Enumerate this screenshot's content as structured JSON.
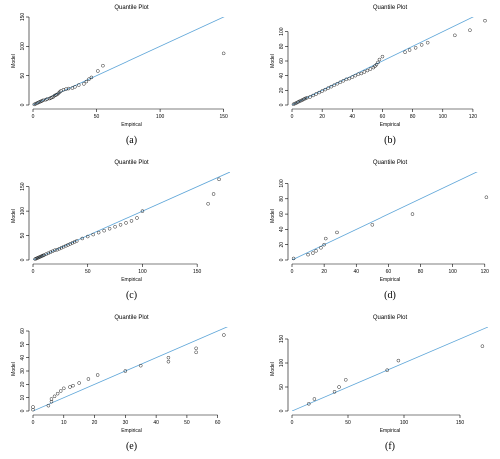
{
  "colors": {
    "reference_line": "#5da5d8",
    "points": "#222222",
    "axes": "#000000"
  },
  "chart_data": [
    {
      "type": "scatter",
      "caption": "(a)",
      "title": "Quantile Plot",
      "xlabel": "Empirical",
      "ylabel": "Model",
      "xlim": [
        0,
        155
      ],
      "ylim": [
        0,
        150
      ],
      "xticks": [
        0,
        50,
        100,
        150
      ],
      "yticks": [
        0,
        50,
        100,
        150
      ],
      "reference_line": {
        "x": [
          0,
          155
        ],
        "y": [
          0,
          155
        ]
      },
      "series": [
        {
          "x": [
            1,
            2,
            3,
            4,
            5,
            6,
            7,
            8,
            10,
            11,
            13,
            14,
            15,
            16,
            17,
            18,
            19,
            20,
            21,
            22,
            24,
            26,
            28,
            31,
            33,
            36,
            40,
            42,
            44,
            46,
            51,
            55,
            150
          ],
          "y": [
            1,
            2,
            3,
            4,
            5,
            6,
            7,
            8,
            9,
            10,
            11,
            12,
            13,
            14,
            16,
            17,
            18,
            20,
            22,
            24,
            26,
            27,
            28,
            29,
            31,
            34,
            36,
            40,
            44,
            47,
            58,
            67,
            88
          ]
        }
      ]
    },
    {
      "type": "scatter",
      "caption": "(b)",
      "title": "Quantile Plot",
      "xlabel": "Empirical",
      "ylabel": "Model",
      "xlim": [
        0,
        130
      ],
      "ylim": [
        0,
        120
      ],
      "xticks": [
        0,
        20,
        40,
        60,
        80,
        100,
        120
      ],
      "yticks": [
        0,
        20,
        40,
        60,
        80,
        100
      ],
      "reference_line": {
        "x": [
          0,
          130
        ],
        "y": [
          0,
          130
        ]
      },
      "series": [
        {
          "x": [
            1,
            2,
            3,
            4,
            5,
            6,
            7,
            8,
            9,
            10,
            12,
            14,
            16,
            18,
            20,
            22,
            24,
            26,
            28,
            30,
            32,
            34,
            36,
            38,
            40,
            42,
            44,
            46,
            48,
            50,
            52,
            54,
            55,
            56,
            57,
            58,
            60,
            75,
            78,
            82,
            86,
            90,
            108,
            118,
            128
          ],
          "y": [
            1,
            2,
            3,
            4,
            5,
            6,
            7,
            8,
            9,
            10,
            11,
            13,
            15,
            17,
            19,
            21,
            23,
            25,
            27,
            29,
            31,
            33,
            35,
            36,
            38,
            40,
            42,
            43,
            45,
            47,
            49,
            51,
            53,
            55,
            58,
            62,
            66,
            72,
            75,
            78,
            82,
            85,
            95,
            102,
            115
          ]
        }
      ]
    },
    {
      "type": "scatter",
      "caption": "(c)",
      "title": "Quantile Plot",
      "xlabel": "Empirical",
      "ylabel": "Model",
      "xlim": [
        0,
        180
      ],
      "ylim": [
        0,
        180
      ],
      "xticks": [
        0,
        50,
        100,
        150
      ],
      "yticks": [
        0,
        50,
        100,
        150
      ],
      "reference_line": {
        "x": [
          0,
          180
        ],
        "y": [
          0,
          180
        ]
      },
      "series": [
        {
          "x": [
            2,
            3,
            4,
            5,
            6,
            7,
            8,
            9,
            10,
            12,
            14,
            16,
            18,
            20,
            22,
            24,
            26,
            28,
            30,
            32,
            34,
            36,
            38,
            40,
            45,
            50,
            55,
            60,
            65,
            70,
            75,
            80,
            85,
            90,
            95,
            100,
            160,
            165,
            170
          ],
          "y": [
            2,
            3,
            4,
            5,
            6,
            7,
            8,
            9,
            10,
            12,
            14,
            16,
            18,
            20,
            21,
            23,
            25,
            27,
            29,
            31,
            33,
            35,
            37,
            39,
            44,
            48,
            52,
            56,
            60,
            64,
            68,
            72,
            76,
            80,
            86,
            100,
            115,
            135,
            165
          ]
        }
      ]
    },
    {
      "type": "scatter",
      "caption": "(d)",
      "title": "Quantile Plot",
      "xlabel": "Empirical",
      "ylabel": "Model",
      "xlim": [
        0,
        122
      ],
      "ylim": [
        0,
        115
      ],
      "xticks": [
        0,
        20,
        40,
        60,
        80,
        100,
        120
      ],
      "yticks": [
        0,
        20,
        40,
        60,
        80,
        100
      ],
      "reference_line": {
        "x": [
          0,
          122
        ],
        "y": [
          0,
          122
        ]
      },
      "series": [
        {
          "x": [
            1,
            10,
            13,
            15,
            18,
            20,
            21,
            28,
            50,
            75,
            121
          ],
          "y": [
            2,
            7,
            9,
            12,
            16,
            20,
            28,
            36,
            46,
            60,
            82
          ]
        }
      ]
    },
    {
      "type": "scatter",
      "caption": "(e)",
      "title": "Quantile Plot",
      "xlabel": "Empirical",
      "ylabel": "Model",
      "xlim": [
        0,
        64
      ],
      "ylim": [
        0,
        63
      ],
      "xticks": [
        0,
        10,
        20,
        30,
        40,
        50,
        60
      ],
      "yticks": [
        0,
        10,
        20,
        30,
        40,
        50,
        60
      ],
      "reference_line": {
        "x": [
          0,
          64
        ],
        "y": [
          0,
          64
        ]
      },
      "series": [
        {
          "x": [
            0,
            0,
            5,
            6,
            6,
            7,
            8,
            9,
            10,
            12,
            13,
            15,
            18,
            21,
            30,
            35,
            44,
            44,
            53,
            53,
            62
          ],
          "y": [
            1,
            3,
            4,
            7,
            9,
            11,
            13,
            15,
            17,
            18,
            19,
            21,
            24,
            27,
            30,
            34,
            37,
            40,
            44,
            47,
            57
          ]
        }
      ]
    },
    {
      "type": "scatter",
      "caption": "(f)",
      "title": "Quantile Plot",
      "xlabel": "Empirical",
      "ylabel": "Model",
      "xlim": [
        0,
        175
      ],
      "ylim": [
        0,
        175
      ],
      "xticks": [
        0,
        50,
        100,
        150
      ],
      "yticks": [
        0,
        50,
        100,
        150
      ],
      "reference_line": {
        "x": [
          0,
          175
        ],
        "y": [
          0,
          175
        ]
      },
      "series": [
        {
          "x": [
            15,
            20,
            38,
            42,
            48,
            85,
            95,
            170
          ],
          "y": [
            15,
            25,
            40,
            50,
            65,
            85,
            105,
            135
          ]
        }
      ]
    }
  ]
}
